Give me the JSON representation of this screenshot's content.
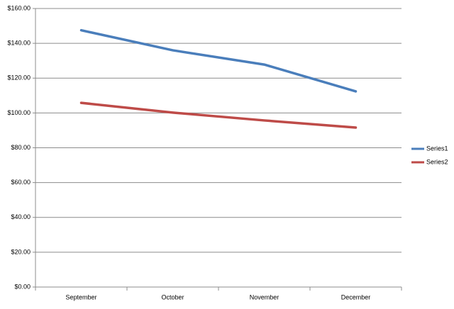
{
  "chart_data": {
    "type": "line",
    "categories": [
      "September",
      "October",
      "November",
      "December"
    ],
    "series": [
      {
        "name": "Series1",
        "color": "#4a7ebb",
        "values": [
          147.5,
          136,
          127.8,
          112.4
        ]
      },
      {
        "name": "Series2",
        "color": "#be4b48",
        "values": [
          105.8,
          100.2,
          95.7,
          91.6
        ]
      }
    ],
    "ylim": [
      0,
      160
    ],
    "yticks": [
      {
        "value": 0,
        "label": "$0.00"
      },
      {
        "value": 20,
        "label": "$20.00"
      },
      {
        "value": 40,
        "label": "$40.00"
      },
      {
        "value": 60,
        "label": "$60.00"
      },
      {
        "value": 80,
        "label": "$80.00"
      },
      {
        "value": 100,
        "label": "$100.00"
      },
      {
        "value": 120,
        "label": "$120.00"
      },
      {
        "value": 140,
        "label": "$140.00"
      },
      {
        "value": 160,
        "label": "$160.00"
      }
    ],
    "grid": true,
    "legend": "right"
  }
}
